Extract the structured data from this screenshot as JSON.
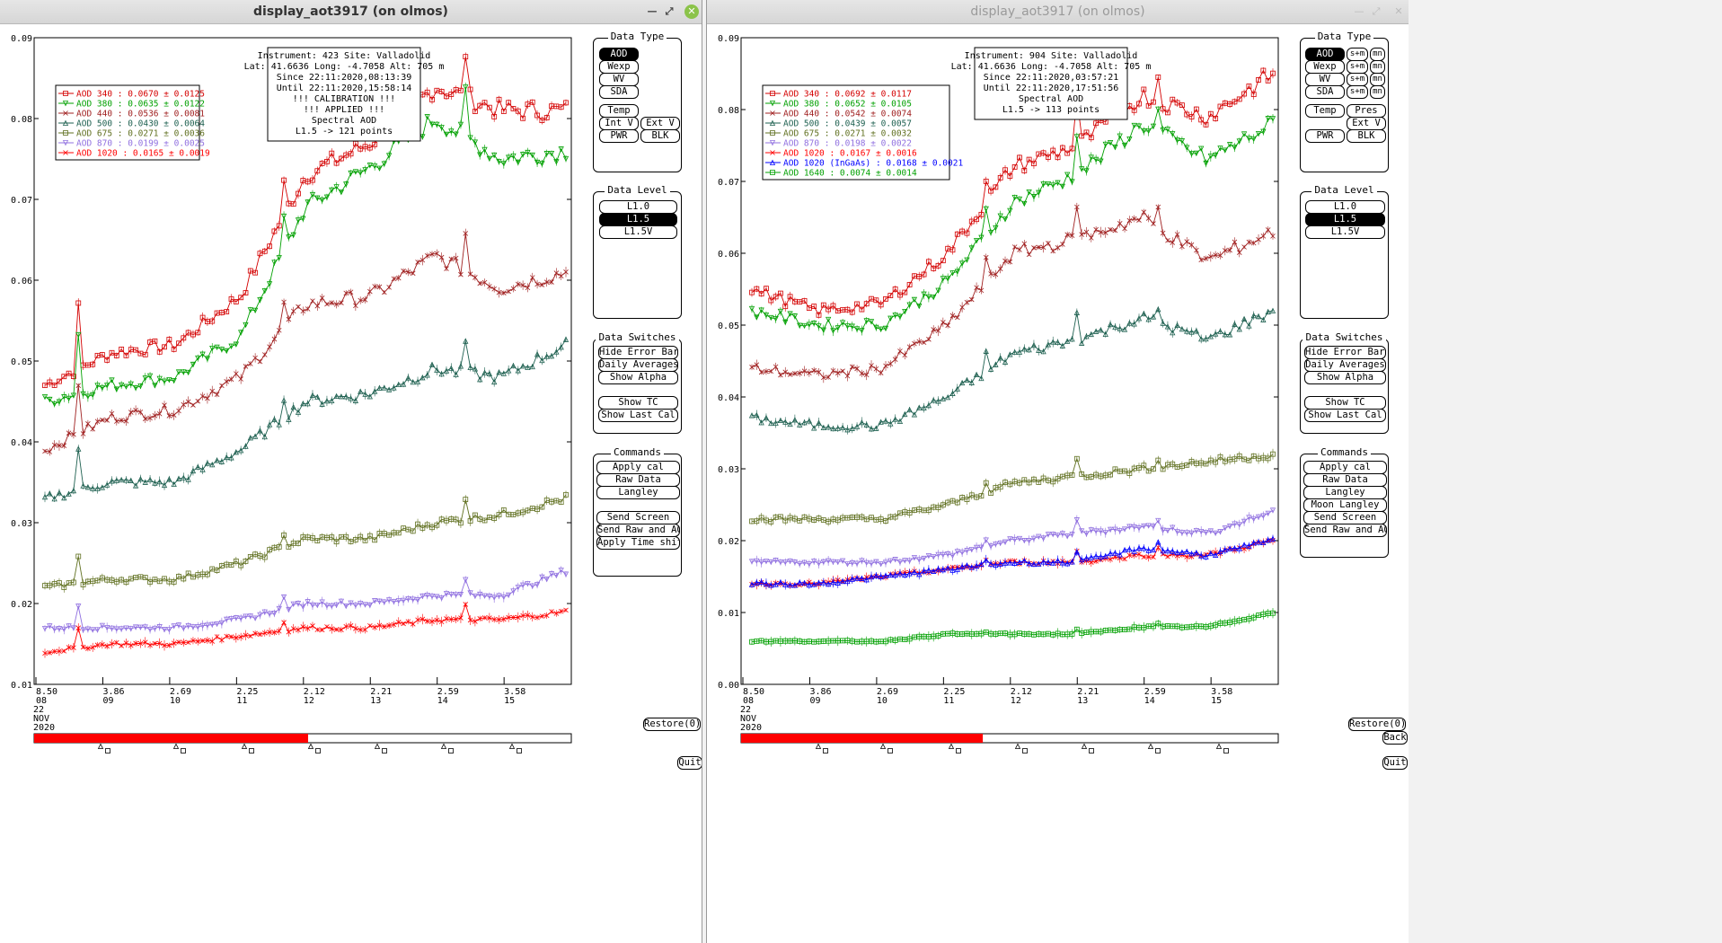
{
  "left": {
    "window_title": "display_aot3917 (on olmos)",
    "info": [
      "Instrument: 423 Site: Valladolid",
      "Lat: 41.6636 Long: -4.7058 Alt: 705 m",
      "Since 22:11:2020,08:13:39",
      "Until 22:11:2020,15:58:14",
      "!!! CALIBRATION !!!",
      "!!!   APPLIED   !!!",
      "Spectral AOD",
      "L1.5 -> 121 points"
    ],
    "legend": [
      {
        "label": "AOD 340  : 0.0670 ± 0.0125",
        "color": "#d40000",
        "marker": "square"
      },
      {
        "label": "AOD 380  : 0.0635 ± 0.0122",
        "color": "#00a000",
        "marker": "tri-down"
      },
      {
        "label": "AOD 440  : 0.0536 ± 0.0081",
        "color": "#a02020",
        "marker": "x"
      },
      {
        "label": "AOD 500  : 0.0430 ± 0.0064",
        "color": "#1e6050",
        "marker": "tri-up"
      },
      {
        "label": "AOD 675  : 0.0271 ± 0.0036",
        "color": "#607020",
        "marker": "square"
      },
      {
        "label": "AOD 870  : 0.0199 ± 0.0025",
        "color": "#9070e0",
        "marker": "tri-down"
      },
      {
        "label": "AOD 1020  : 0.0165 ± 0.0019",
        "color": "#ff0000",
        "marker": "x"
      }
    ],
    "y_ticks": [
      "0.09",
      "0.08",
      "0.07",
      "0.06",
      "0.05",
      "0.04",
      "0.03",
      "0.02",
      "0.01"
    ],
    "x_ticks": [
      {
        "a": "8.50",
        "b": "08"
      },
      {
        "a": "3.86",
        "b": "09"
      },
      {
        "a": "2.69",
        "b": "10"
      },
      {
        "a": "2.25",
        "b": "11"
      },
      {
        "a": "2.12",
        "b": "12"
      },
      {
        "a": "2.21",
        "b": "13"
      },
      {
        "a": "2.59",
        "b": "14"
      },
      {
        "a": "3.58",
        "b": "15"
      }
    ],
    "date_lines": [
      "22",
      "NOV",
      "2020"
    ],
    "panels": {
      "data_type": {
        "title": "Data Type",
        "buttons": [
          "AOD",
          "Wexp",
          "WV",
          "SDA",
          "Temp",
          "Int V",
          "Ext V",
          "PWR",
          "BLK"
        ]
      },
      "data_level": {
        "title": "Data Level",
        "buttons": [
          "L1.0",
          "L1.5",
          "L1.5V"
        ]
      },
      "data_switches": {
        "title": "Data Switches",
        "buttons": [
          "Hide Error Bars",
          "Daily Averages",
          "Show Alpha",
          "Show TC",
          "Show Last Cal"
        ]
      },
      "commands": {
        "title": "Commands",
        "buttons": [
          "Apply cal",
          "Raw Data",
          "Langley",
          "Send Screen",
          "Send Raw and AOD",
          "Apply Time shift"
        ]
      }
    },
    "restore": "Restore(0)",
    "quit": "Quit",
    "progress": 0.51
  },
  "right": {
    "window_title": "display_aot3917 (on olmos)",
    "info": [
      "Instrument: 904 Site: Valladolid",
      "Lat: 41.6636 Long: -4.7058 Alt: 705 m",
      "Since 22:11:2020,03:57:21",
      "Until 22:11:2020,17:51:56",
      "Spectral AOD",
      "L1.5 -> 113 points"
    ],
    "legend": [
      {
        "label": "AOD 340  : 0.0692 ± 0.0117",
        "color": "#d40000",
        "marker": "square"
      },
      {
        "label": "AOD 380  : 0.0652 ± 0.0105",
        "color": "#00a000",
        "marker": "tri-down"
      },
      {
        "label": "AOD 440  : 0.0542 ± 0.0074",
        "color": "#a02020",
        "marker": "x"
      },
      {
        "label": "AOD 500  : 0.0439 ± 0.0057",
        "color": "#1e6050",
        "marker": "tri-up"
      },
      {
        "label": "AOD 675  : 0.0271 ± 0.0032",
        "color": "#607020",
        "marker": "square"
      },
      {
        "label": "AOD 870  : 0.0198 ± 0.0022",
        "color": "#9070e0",
        "marker": "tri-down"
      },
      {
        "label": "AOD 1020  : 0.0167 ± 0.0016",
        "color": "#ff0000",
        "marker": "x"
      },
      {
        "label": "AOD 1020 (InGaAs)  : 0.0168 ± 0.0021",
        "color": "#0000ff",
        "marker": "tri-up"
      },
      {
        "label": "AOD 1640  : 0.0074 ± 0.0014",
        "color": "#00a000",
        "marker": "square"
      }
    ],
    "y_ticks": [
      "0.09",
      "0.08",
      "0.07",
      "0.06",
      "0.05",
      "0.04",
      "0.03",
      "0.02",
      "0.01",
      "0.00"
    ],
    "x_ticks": [
      {
        "a": "8.50",
        "b": "08"
      },
      {
        "a": "3.86",
        "b": "09"
      },
      {
        "a": "2.69",
        "b": "10"
      },
      {
        "a": "2.25",
        "b": "11"
      },
      {
        "a": "2.12",
        "b": "12"
      },
      {
        "a": "2.21",
        "b": "13"
      },
      {
        "a": "2.59",
        "b": "14"
      },
      {
        "a": "3.58",
        "b": "15"
      }
    ],
    "date_lines": [
      "22",
      "NOV",
      "2020"
    ],
    "panels": {
      "data_type": {
        "title": "Data Type",
        "buttons": [
          "AOD",
          "s+m",
          "mn",
          "Wexp",
          "s+m",
          "mn",
          "WV",
          "s+m",
          "mn",
          "SDA",
          "s+m",
          "mn",
          "Temp",
          "Pres",
          "Ext V",
          "PWR",
          "BLK"
        ]
      },
      "data_level": {
        "title": "Data Level",
        "buttons": [
          "L1.0",
          "L1.5",
          "L1.5V"
        ]
      },
      "data_switches": {
        "title": "Data Switches",
        "buttons": [
          "Hide Error Bars",
          "Daily Averages",
          "Show Alpha",
          "Show TC",
          "Show Last Cal"
        ]
      },
      "commands": {
        "title": "Commands",
        "buttons": [
          "Apply cal",
          "Raw Data",
          "Langley",
          "Moon Langley",
          "Send Screen",
          "Send Raw and AOD"
        ]
      }
    },
    "restore": "Restore(0)",
    "back": "Back",
    "quit": "Quit",
    "progress": 0.45
  },
  "chart_data": [
    {
      "type": "line",
      "ylim": [
        0.01,
        0.09
      ],
      "x": [
        8,
        9,
        10,
        11,
        12,
        13,
        14,
        15,
        16
      ],
      "series": [
        {
          "name": "AOD 340",
          "values": [
            0.047,
            0.051,
            0.052,
            0.058,
            0.073,
            0.077,
            0.084,
            0.081,
            0.081
          ]
        },
        {
          "name": "AOD 380",
          "values": [
            0.045,
            0.047,
            0.048,
            0.053,
            0.069,
            0.074,
            0.08,
            0.075,
            0.076
          ]
        },
        {
          "name": "AOD 440",
          "values": [
            0.039,
            0.043,
            0.044,
            0.048,
            0.057,
            0.058,
            0.063,
            0.059,
            0.061
          ]
        },
        {
          "name": "AOD 500",
          "values": [
            0.033,
            0.035,
            0.035,
            0.039,
            0.045,
            0.046,
            0.049,
            0.048,
            0.052
          ]
        },
        {
          "name": "AOD 675",
          "values": [
            0.022,
            0.023,
            0.023,
            0.025,
            0.028,
            0.028,
            0.03,
            0.031,
            0.033
          ]
        },
        {
          "name": "AOD 870",
          "values": [
            0.017,
            0.017,
            0.017,
            0.018,
            0.02,
            0.02,
            0.021,
            0.021,
            0.024
          ]
        },
        {
          "name": "AOD 1020",
          "values": [
            0.014,
            0.015,
            0.015,
            0.016,
            0.017,
            0.017,
            0.018,
            0.018,
            0.019
          ]
        }
      ]
    },
    {
      "type": "line",
      "ylim": [
        0.0,
        0.09
      ],
      "x": [
        8,
        9,
        10,
        11,
        12,
        13,
        14,
        15,
        16
      ],
      "series": [
        {
          "name": "AOD 340",
          "values": [
            0.055,
            0.052,
            0.053,
            0.06,
            0.072,
            0.075,
            0.082,
            0.079,
            0.085
          ]
        },
        {
          "name": "AOD 380",
          "values": [
            0.052,
            0.05,
            0.05,
            0.056,
            0.067,
            0.071,
            0.078,
            0.073,
            0.078
          ]
        },
        {
          "name": "AOD 440",
          "values": [
            0.044,
            0.043,
            0.044,
            0.05,
            0.06,
            0.062,
            0.065,
            0.059,
            0.063
          ]
        },
        {
          "name": "AOD 500",
          "values": [
            0.037,
            0.036,
            0.036,
            0.04,
            0.046,
            0.048,
            0.051,
            0.048,
            0.052
          ]
        },
        {
          "name": "AOD 675",
          "values": [
            0.023,
            0.023,
            0.023,
            0.025,
            0.028,
            0.029,
            0.03,
            0.031,
            0.032
          ]
        },
        {
          "name": "AOD 870",
          "values": [
            0.017,
            0.017,
            0.017,
            0.018,
            0.02,
            0.021,
            0.022,
            0.021,
            0.024
          ]
        },
        {
          "name": "AOD 1020",
          "values": [
            0.014,
            0.014,
            0.015,
            0.016,
            0.017,
            0.017,
            0.018,
            0.018,
            0.02
          ]
        },
        {
          "name": "AOD 1020 (InGaAs)",
          "values": [
            0.014,
            0.014,
            0.015,
            0.016,
            0.017,
            0.017,
            0.019,
            0.018,
            0.02
          ]
        },
        {
          "name": "AOD 1640",
          "values": [
            0.006,
            0.006,
            0.006,
            0.007,
            0.007,
            0.007,
            0.008,
            0.008,
            0.01
          ]
        }
      ]
    }
  ]
}
